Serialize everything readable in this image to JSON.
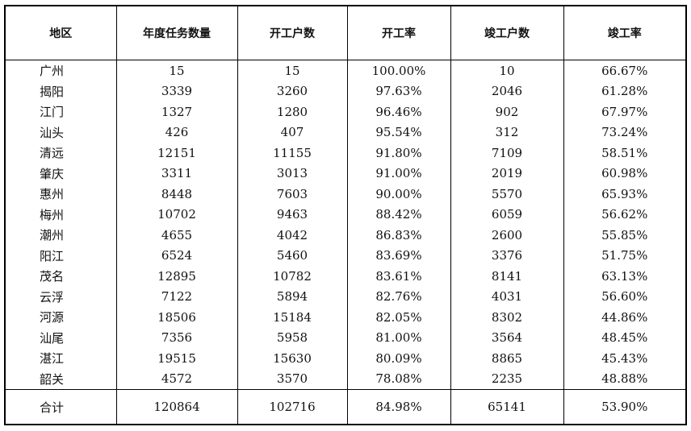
{
  "table": {
    "headers": [
      "地区",
      "年度任务数量",
      "开工户数",
      "开工率",
      "竣工户数",
      "竣工率"
    ],
    "rows": [
      [
        "广州",
        "15",
        "15",
        "100.00%",
        "10",
        "66.67%"
      ],
      [
        "揭阳",
        "3339",
        "3260",
        "97.63%",
        "2046",
        "61.28%"
      ],
      [
        "江门",
        "1327",
        "1280",
        "96.46%",
        "902",
        "67.97%"
      ],
      [
        "汕头",
        "426",
        "407",
        "95.54%",
        "312",
        "73.24%"
      ],
      [
        "清远",
        "12151",
        "11155",
        "91.80%",
        "7109",
        "58.51%"
      ],
      [
        "肇庆",
        "3311",
        "3013",
        "91.00%",
        "2019",
        "60.98%"
      ],
      [
        "惠州",
        "8448",
        "7603",
        "90.00%",
        "5570",
        "65.93%"
      ],
      [
        "梅州",
        "10702",
        "9463",
        "88.42%",
        "6059",
        "56.62%"
      ],
      [
        "潮州",
        "4655",
        "4042",
        "86.83%",
        "2600",
        "55.85%"
      ],
      [
        "阳江",
        "6524",
        "5460",
        "83.69%",
        "3376",
        "51.75%"
      ],
      [
        "茂名",
        "12895",
        "10782",
        "83.61%",
        "8141",
        "63.13%"
      ],
      [
        "云浮",
        "7122",
        "5894",
        "82.76%",
        "4031",
        "56.60%"
      ],
      [
        "河源",
        "18506",
        "15184",
        "82.05%",
        "8302",
        "44.86%"
      ],
      [
        "汕尾",
        "7356",
        "5958",
        "81.00%",
        "3564",
        "48.45%"
      ],
      [
        "湛江",
        "19515",
        "15630",
        "80.09%",
        "8865",
        "45.43%"
      ],
      [
        "韶关",
        "4572",
        "3570",
        "78.08%",
        "2235",
        "48.88%"
      ]
    ],
    "total": [
      "合计",
      "120864",
      "102716",
      "84.98%",
      "65141",
      "53.90%"
    ]
  }
}
